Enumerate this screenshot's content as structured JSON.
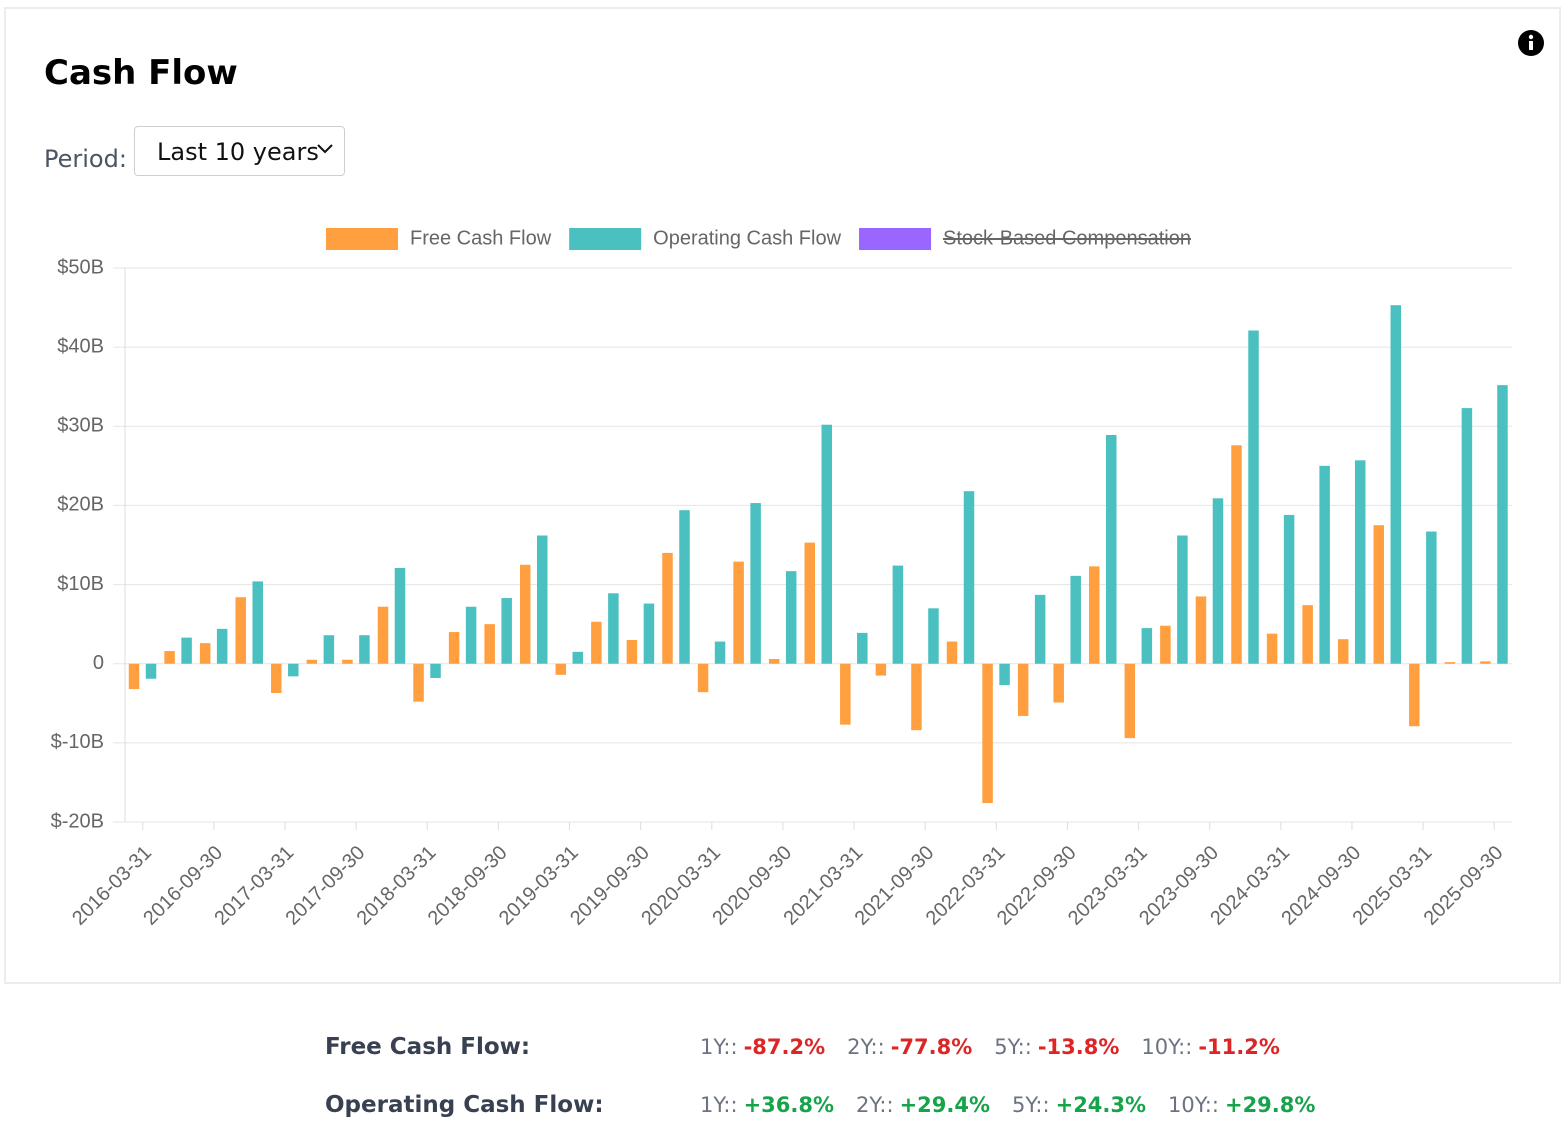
{
  "header": {
    "title": "Cash Flow",
    "period_label": "Period:",
    "period_value": "Last 10 years"
  },
  "chart_data": {
    "type": "bar",
    "categories": [
      "2016-03-31",
      null,
      "2016-09-30",
      null,
      "2017-03-31",
      null,
      "2017-09-30",
      null,
      "2018-03-31",
      null,
      "2018-09-30",
      null,
      "2019-03-31",
      null,
      "2019-09-30",
      null,
      "2020-03-31",
      null,
      "2020-09-30",
      null,
      "2021-03-31",
      null,
      "2021-09-30",
      null,
      "2022-03-31",
      null,
      "2022-09-30",
      null,
      "2023-03-31",
      null,
      "2023-09-30",
      null,
      "2024-03-31",
      null,
      "2024-09-30",
      null,
      "2025-03-31",
      null,
      "2025-09-30"
    ],
    "series": [
      {
        "name": "Free Cash Flow",
        "color": "#ff9f40",
        "values": [
          -3.2,
          1.6,
          2.6,
          8.4,
          -3.7,
          0.5,
          0.5,
          7.2,
          -4.8,
          4.0,
          5.0,
          12.5,
          -1.4,
          5.3,
          3.0,
          14.0,
          -3.6,
          12.9,
          0.6,
          15.3,
          -7.7,
          -1.5,
          -8.4,
          2.8,
          -17.6,
          -6.6,
          -4.9,
          12.3,
          -9.4,
          4.8,
          8.5,
          27.6,
          3.8,
          7.4,
          3.1,
          17.5,
          -7.9,
          0.2,
          0.3
        ]
      },
      {
        "name": "Operating Cash Flow",
        "color": "#4bc0c0",
        "values": [
          -1.9,
          3.3,
          4.4,
          10.4,
          -1.6,
          3.6,
          3.6,
          12.1,
          -1.8,
          7.2,
          8.3,
          16.2,
          1.5,
          8.9,
          7.6,
          19.4,
          2.8,
          20.3,
          11.7,
          30.2,
          3.9,
          12.4,
          7.0,
          21.8,
          -2.7,
          8.7,
          11.1,
          28.9,
          4.5,
          16.2,
          20.9,
          42.1,
          18.8,
          25.0,
          25.7,
          45.3,
          16.7,
          32.3,
          35.2
        ]
      }
    ],
    "hidden_series": [
      {
        "name": "Stock-Based Compensation",
        "color": "#9966ff"
      }
    ],
    "ylim": [
      -20,
      50
    ],
    "yticks": [
      {
        "value": -20,
        "label": "$-20B"
      },
      {
        "value": -10,
        "label": "$-10B"
      },
      0,
      {
        "value": 10,
        "label": "$10B"
      },
      {
        "value": 20,
        "label": "$20B"
      },
      {
        "value": 30,
        "label": "$30B"
      },
      {
        "value": 40,
        "label": "$40B"
      },
      {
        "value": 50,
        "label": "$50B"
      }
    ],
    "grid": true,
    "legend": "top"
  },
  "stats": [
    {
      "name": "Free Cash Flow:",
      "items": [
        {
          "label": "1Y::",
          "value": "-87.2%"
        },
        {
          "label": "2Y::",
          "value": "-77.8%"
        },
        {
          "label": "5Y::",
          "value": "-13.8%"
        },
        {
          "label": "10Y::",
          "value": "-11.2%"
        }
      ]
    },
    {
      "name": "Operating Cash Flow:",
      "items": [
        {
          "label": "1Y::",
          "value": "+36.8%"
        },
        {
          "label": "2Y::",
          "value": "+29.4%"
        },
        {
          "label": "5Y::",
          "value": "+24.3%"
        },
        {
          "label": "10Y::",
          "value": "+29.8%"
        }
      ]
    }
  ]
}
